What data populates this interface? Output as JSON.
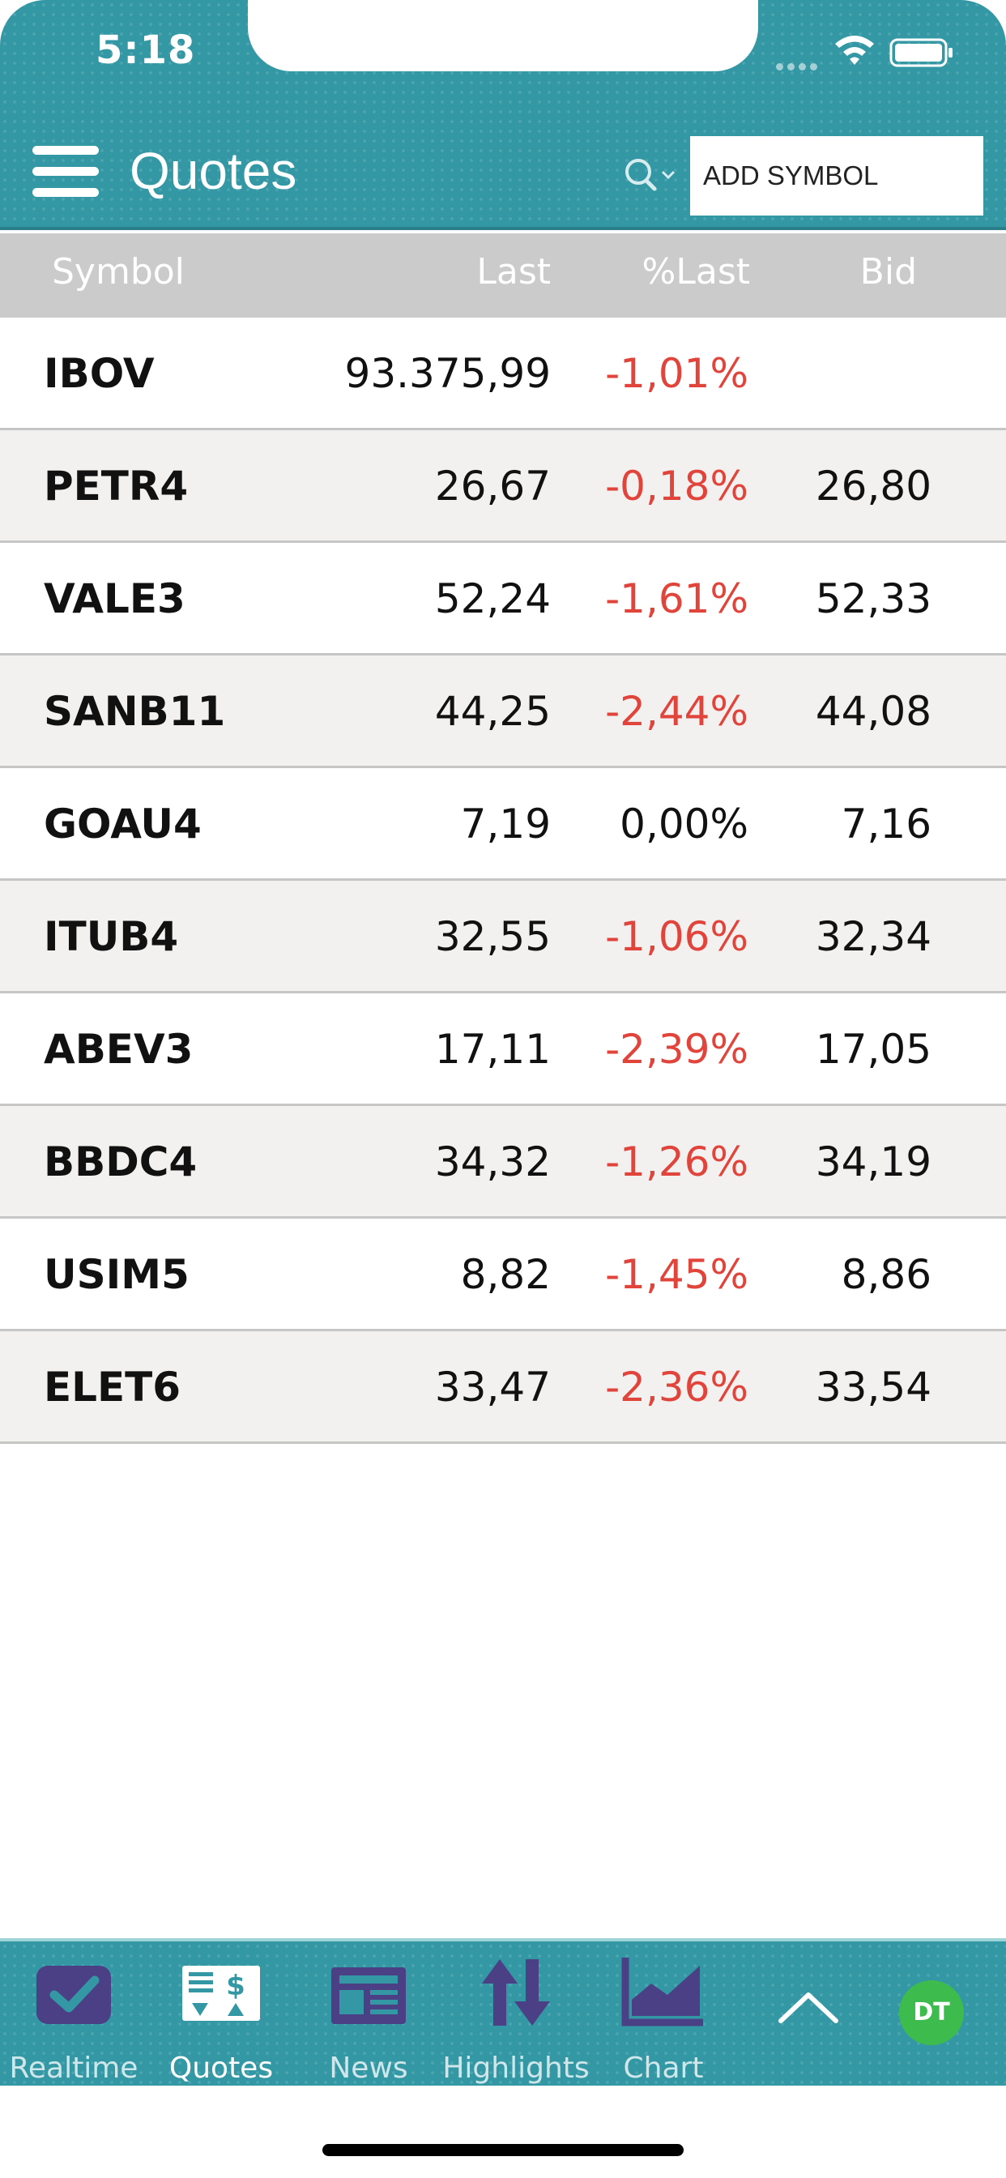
{
  "status_bar": {
    "time": "5:18"
  },
  "header": {
    "title": "Quotes",
    "search": {
      "value": "ADD SYMBOL"
    }
  },
  "columns": {
    "symbol": "Symbol",
    "last": "Last",
    "pct_last": "%Last",
    "bid": "Bid"
  },
  "quotes": [
    {
      "symbol": "IBOV",
      "last": "93.375,99",
      "pct": "-1,01%",
      "bid": ""
    },
    {
      "symbol": "PETR4",
      "last": "26,67",
      "pct": "-0,18%",
      "bid": "26,80"
    },
    {
      "symbol": "VALE3",
      "last": "52,24",
      "pct": "-1,61%",
      "bid": "52,33"
    },
    {
      "symbol": "SANB11",
      "last": "44,25",
      "pct": "-2,44%",
      "bid": "44,08"
    },
    {
      "symbol": "GOAU4",
      "last": "7,19",
      "pct": "0,00%",
      "bid": "7,16"
    },
    {
      "symbol": "ITUB4",
      "last": "32,55",
      "pct": "-1,06%",
      "bid": "32,34"
    },
    {
      "symbol": "ABEV3",
      "last": "17,11",
      "pct": "-2,39%",
      "bid": "17,05"
    },
    {
      "symbol": "BBDC4",
      "last": "34,32",
      "pct": "-1,26%",
      "bid": "34,19"
    },
    {
      "symbol": "USIM5",
      "last": "8,82",
      "pct": "-1,45%",
      "bid": "8,86"
    },
    {
      "symbol": "ELET6",
      "last": "33,47",
      "pct": "-2,36%",
      "bid": "33,54"
    }
  ],
  "tabbar": {
    "tabs": [
      {
        "label": "Realtime",
        "icon": "checkbox-icon"
      },
      {
        "label": "Quotes",
        "icon": "quotes-board-icon",
        "active": true
      },
      {
        "label": "News",
        "icon": "newspaper-icon"
      },
      {
        "label": "Highlights",
        "icon": "up-down-arrows-icon"
      },
      {
        "label": "Chart",
        "icon": "area-chart-icon"
      }
    ],
    "avatar": "DT"
  },
  "colors": {
    "header_teal": "#3398a4",
    "negative_red": "#e0443b",
    "header_gray": "#cbcbcb",
    "row_alt": "#f2f1f0",
    "tab_icon_purple": "#4b3f86",
    "avatar_green": "#3dbb4d"
  }
}
